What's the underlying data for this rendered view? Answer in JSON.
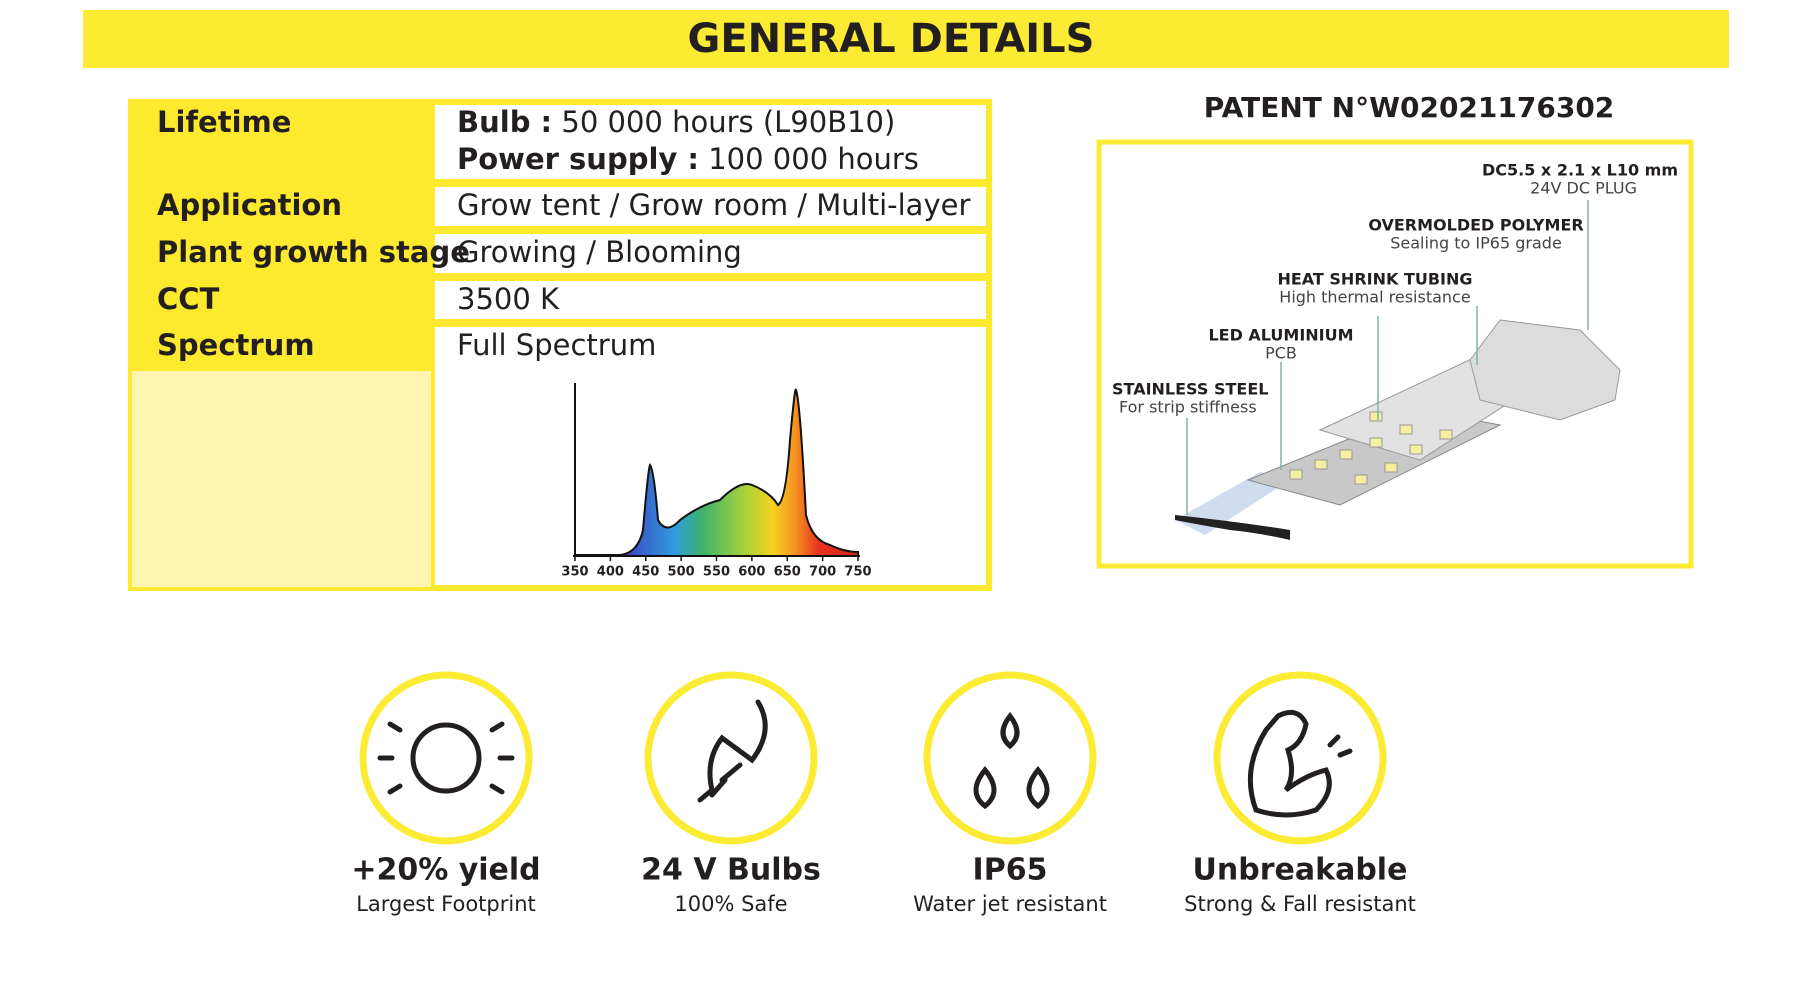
{
  "header": {
    "title": "GENERAL DETAILS"
  },
  "table": {
    "rows": [
      {
        "label": "Lifetime",
        "lines": [
          {
            "key": "Bulb :",
            "text": "50 000 hours (L90B10)"
          },
          {
            "key": "Power supply :",
            "text": "100 000 hours"
          }
        ]
      },
      {
        "label": "Application",
        "value": "Grow tent / Grow room / Multi-layer"
      },
      {
        "label": "Plant growth stage",
        "value": "Growing / Blooming"
      },
      {
        "label": "CCT",
        "value": "3500 K"
      },
      {
        "label": "Spectrum",
        "value": "Full Spectrum"
      }
    ]
  },
  "spectrum": {
    "xticks": [
      350,
      400,
      450,
      500,
      550,
      600,
      650,
      700,
      750
    ]
  },
  "patent": {
    "title": "PATENT N°W02021176302",
    "callouts": [
      {
        "title": "DC5.5 x 2.1 x L10 mm",
        "subtitle": "24V DC PLUG"
      },
      {
        "title": "OVERMOLDED POLYMER",
        "subtitle": "Sealing to IP65 grade"
      },
      {
        "title": "HEAT SHRINK TUBING",
        "subtitle": "High thermal resistance"
      },
      {
        "title": "LED ALUMINIUM",
        "subtitle": "PCB"
      },
      {
        "title": "STAINLESS STEEL",
        "subtitle": "For strip stiffness"
      }
    ]
  },
  "features": [
    {
      "title": "+20% yield",
      "subtitle": "Largest Footprint"
    },
    {
      "title": "24 V Bulbs",
      "subtitle": "100% Safe"
    },
    {
      "title": "IP65",
      "subtitle": "Water jet resistant"
    },
    {
      "title": "Unbreakable",
      "subtitle": "Strong & Fall resistant"
    }
  ]
}
